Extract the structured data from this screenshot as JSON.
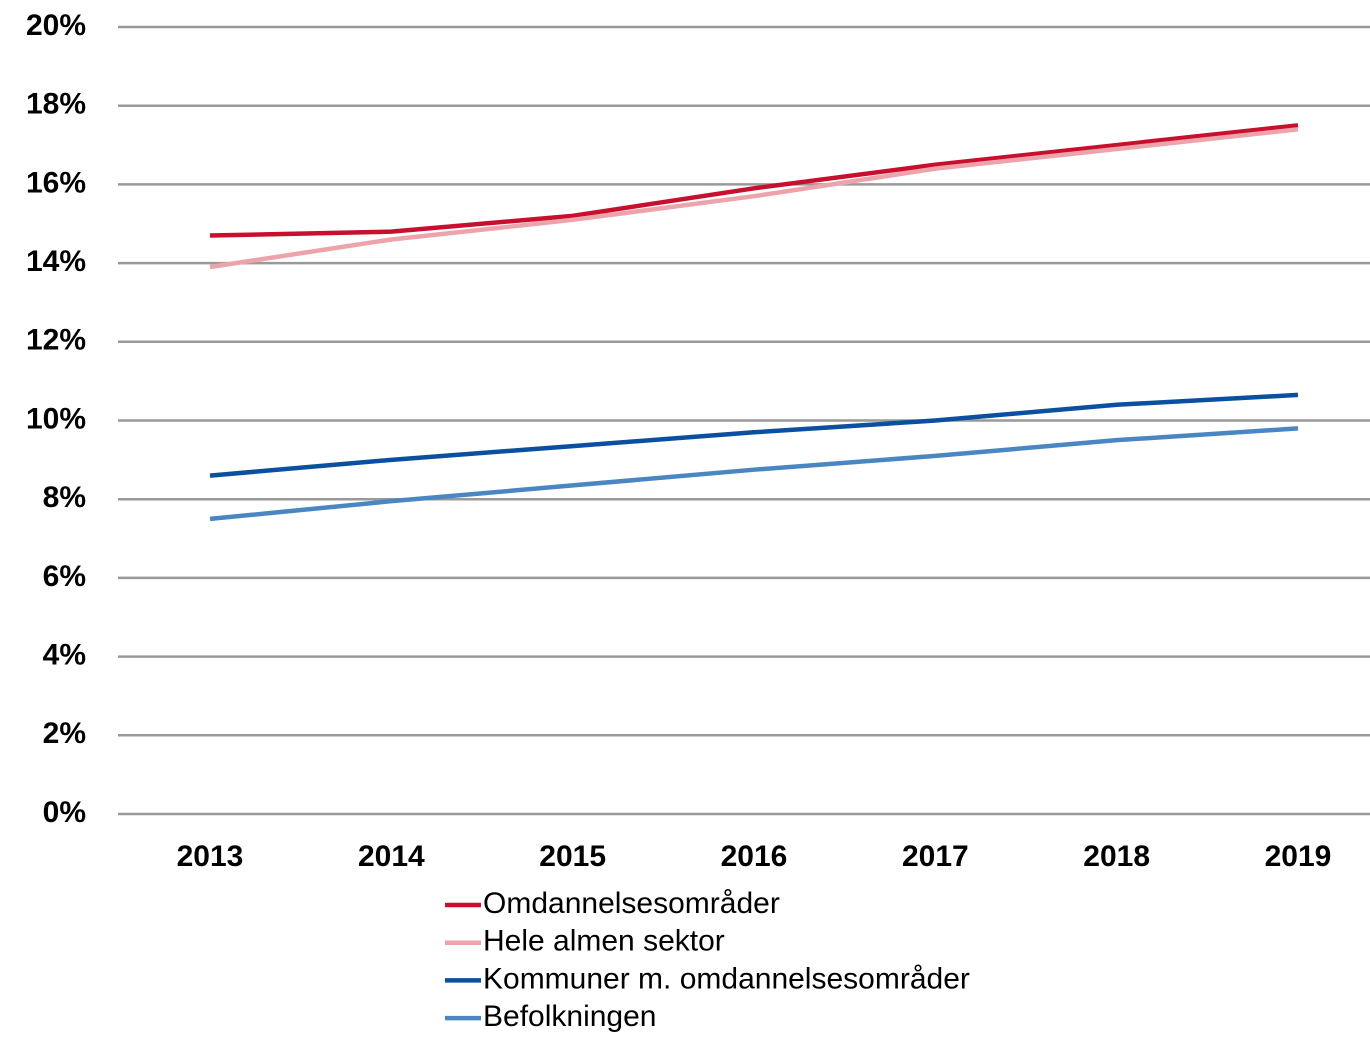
{
  "chart_data": {
    "type": "line",
    "categories": [
      "2013",
      "2014",
      "2015",
      "2016",
      "2017",
      "2018",
      "2019"
    ],
    "series": [
      {
        "name": "Omdannelsesområder",
        "color": "#c8102e",
        "values": [
          14.7,
          14.8,
          15.2,
          15.9,
          16.5,
          17.0,
          17.5
        ]
      },
      {
        "name": "Hele almen sektor",
        "color": "#eda3aa",
        "values": [
          13.9,
          14.6,
          15.1,
          15.7,
          16.4,
          16.9,
          17.4
        ]
      },
      {
        "name": "Kommuner m. omdannelsesområder",
        "color": "#0b4fa0",
        "values": [
          8.6,
          9.0,
          9.35,
          9.7,
          10.0,
          10.4,
          10.65
        ]
      },
      {
        "name": "Befolkningen",
        "color": "#4a87c2",
        "values": [
          7.5,
          7.95,
          8.35,
          8.75,
          9.1,
          9.5,
          9.8
        ]
      }
    ],
    "ylim": [
      0,
      20
    ],
    "yticks": [
      {
        "value": 0,
        "label": "0%"
      },
      {
        "value": 2,
        "label": "2%"
      },
      {
        "value": 4,
        "label": "4%"
      },
      {
        "value": 6,
        "label": "6%"
      },
      {
        "value": 8,
        "label": "8%"
      },
      {
        "value": 10,
        "label": "10%"
      },
      {
        "value": 12,
        "label": "12%"
      },
      {
        "value": 14,
        "label": "14%"
      },
      {
        "value": 16,
        "label": "16%"
      },
      {
        "value": 18,
        "label": "18%"
      },
      {
        "value": 20,
        "label": "20%"
      }
    ],
    "grid": true,
    "legend": "bottom"
  }
}
